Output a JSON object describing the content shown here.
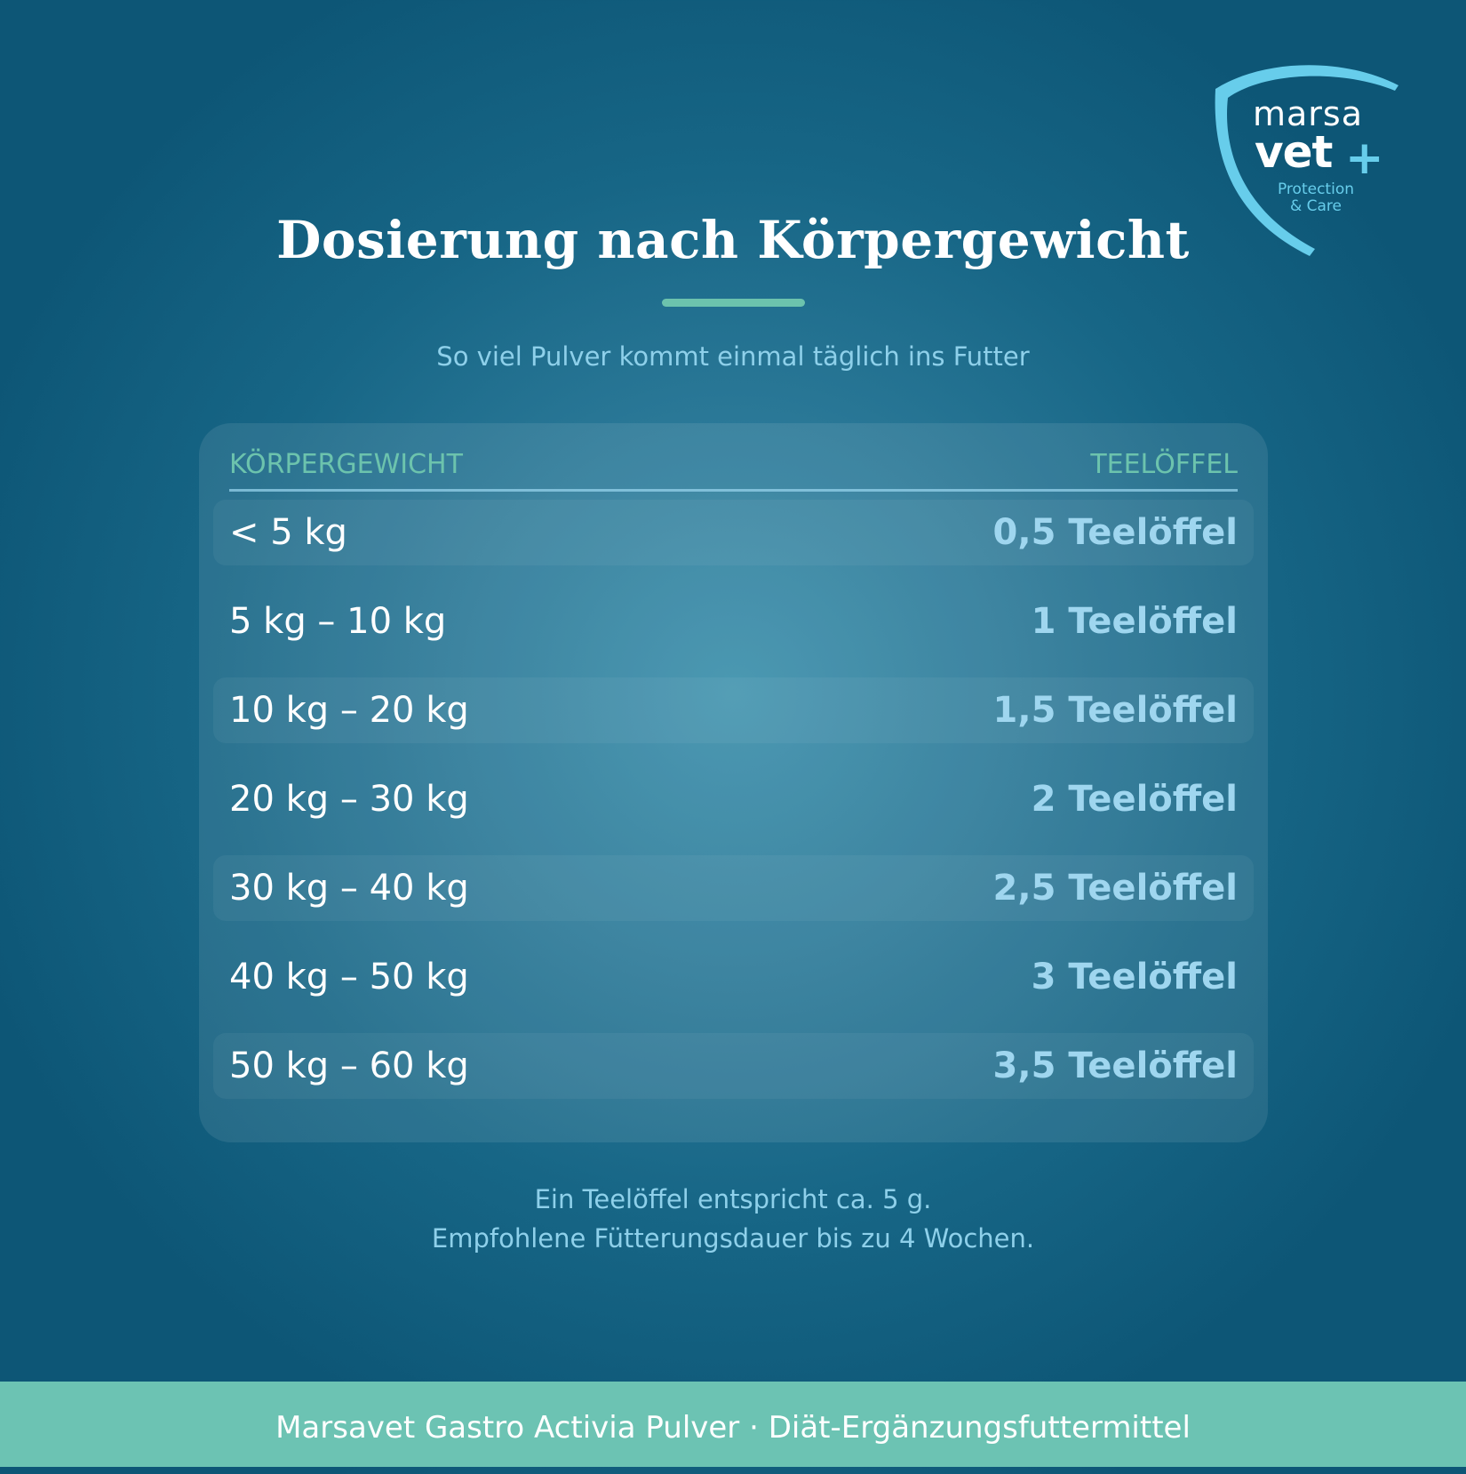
{
  "logo": {
    "line1": "marsa",
    "line2": "vet",
    "plus": "+",
    "tagline1": "Protection",
    "tagline2": "& Care",
    "accent_color": "#67cdeb"
  },
  "header": {
    "title": "Dosierung nach Körpergewicht",
    "subtitle": "So viel Pulver kommt einmal täglich ins Futter",
    "underline_color": "#6cc3ad"
  },
  "table": {
    "col_weight": "KÖRPERGEWICHT",
    "col_dose": "TEELÖFFEL",
    "rows": [
      {
        "weight": "< 5 kg",
        "dose": "0,5 Teelöffel"
      },
      {
        "weight": "5 kg – 10 kg",
        "dose": "1 Teelöffel"
      },
      {
        "weight": "10 kg – 20 kg",
        "dose": "1,5 Teelöffel"
      },
      {
        "weight": "20 kg – 30 kg",
        "dose": "2 Teelöffel"
      },
      {
        "weight": "30 kg – 40 kg",
        "dose": "2,5 Teelöffel"
      },
      {
        "weight": "40 kg – 50 kg",
        "dose": "3 Teelöffel"
      },
      {
        "weight": "50 kg – 60 kg",
        "dose": "3,5 Teelöffel"
      }
    ]
  },
  "notes": {
    "line1": "Ein Teelöffel entspricht ca. 5 g.",
    "line2": "Empfohlene Fütterungsdauer bis zu 4 Wochen."
  },
  "footer": {
    "text": "Marsavet Gastro Activia Pulver · Diät-Ergänzungsfuttermittel",
    "background": "#6cc3b3"
  }
}
